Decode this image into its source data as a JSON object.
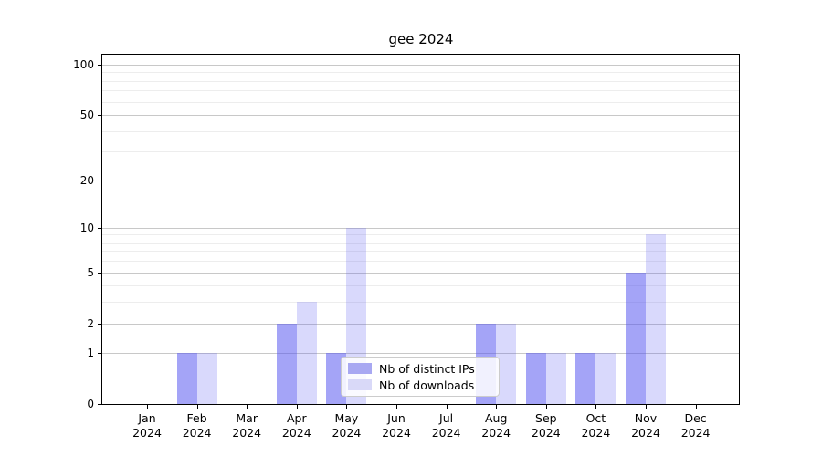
{
  "title": "gee 2024",
  "chart_data": {
    "type": "bar",
    "title": "gee 2024",
    "xlabel": "",
    "ylabel": "",
    "yscale": "log1p",
    "ylim": [
      0,
      115
    ],
    "grid": true,
    "legend_position": "lower center",
    "categories": [
      "Jan 2024",
      "Feb 2024",
      "Mar 2024",
      "Apr 2024",
      "May 2024",
      "Jun 2024",
      "Jul 2024",
      "Aug 2024",
      "Sep 2024",
      "Oct 2024",
      "Nov 2024",
      "Dec 2024"
    ],
    "y_ticks": [
      0,
      1,
      2,
      5,
      10,
      20,
      50,
      100
    ],
    "y_minor_ticks": [
      3,
      4,
      6,
      7,
      8,
      9,
      30,
      40,
      60,
      70,
      80,
      90
    ],
    "series": [
      {
        "name": "Nb of distinct IPs",
        "color": "rgba(80,80,240,0.52)",
        "swatch_hex": "#a8a8f2",
        "values": [
          0,
          1,
          0,
          2,
          1,
          0,
          0,
          2,
          1,
          1,
          5,
          0
        ]
      },
      {
        "name": "Nb of downloads",
        "color": "rgba(80,80,240,0.22)",
        "swatch_hex": "#d9d9f8",
        "values": [
          0,
          1,
          0,
          3,
          10,
          0,
          0,
          2,
          1,
          1,
          9,
          0
        ]
      }
    ]
  },
  "colors": {
    "grid_major": "#c8c8c8",
    "grid_minor": "#ededed",
    "spine": "#000000",
    "background": "#ffffff"
  }
}
